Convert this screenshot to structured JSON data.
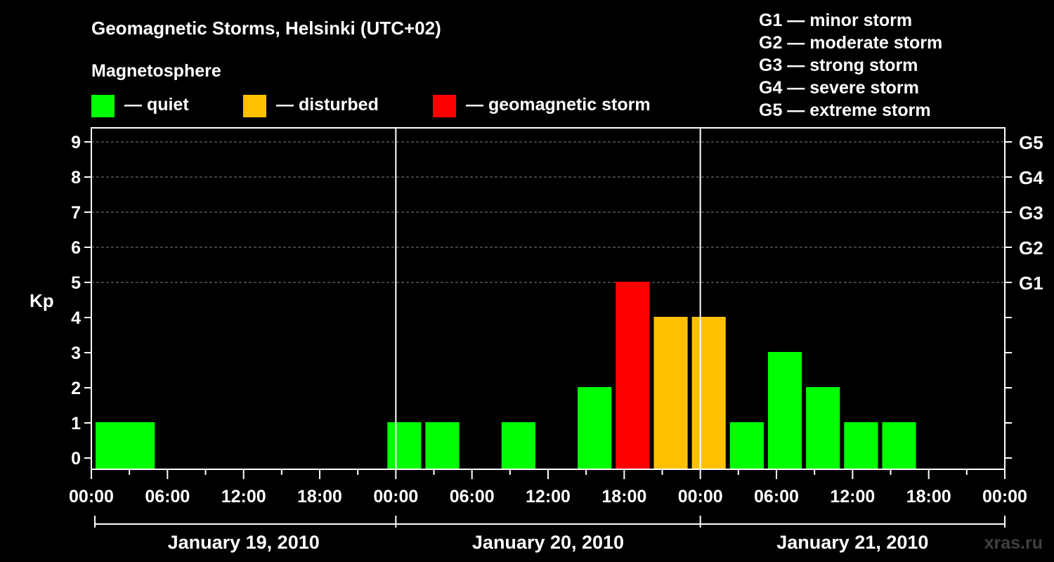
{
  "chart_data": {
    "type": "bar",
    "title": "Geomagnetic Storms, Helsinki (UTC+02)",
    "legend_title": "Magnetosphere",
    "legend": [
      {
        "key": "quiet",
        "label": "— quiet",
        "color": "#00ff00"
      },
      {
        "key": "disturbed",
        "label": "— disturbed",
        "color": "#ffc000"
      },
      {
        "key": "storm",
        "label": "— geomagnetic storm",
        "color": "#ff0000"
      }
    ],
    "storm_scale": [
      "G1 — minor storm",
      "G2 — moderate storm",
      "G3 — strong storm",
      "G4 — severe storm",
      "G5 — extreme storm"
    ],
    "ylabel": "Kp",
    "ylim": [
      0,
      9
    ],
    "yticks": [
      "0",
      "1",
      "2",
      "3",
      "4",
      "5",
      "6",
      "7",
      "8",
      "9"
    ],
    "g_levels": [
      {
        "kp": 5,
        "label": "G1"
      },
      {
        "kp": 6,
        "label": "G2"
      },
      {
        "kp": 7,
        "label": "G3"
      },
      {
        "kp": 8,
        "label": "G4"
      },
      {
        "kp": 9,
        "label": "G5"
      }
    ],
    "x_hours_range": [
      0,
      72
    ],
    "xticks": [
      "00:00",
      "06:00",
      "12:00",
      "18:00",
      "00:00",
      "06:00",
      "12:00",
      "18:00",
      "00:00",
      "06:00",
      "12:00",
      "18:00",
      "00:00"
    ],
    "days": [
      "January 19, 2010",
      "January 20, 2010",
      "January 21, 2010"
    ],
    "bars": [
      {
        "start_hour": 0,
        "kp": 1,
        "level": "quiet"
      },
      {
        "start_hour": 2,
        "kp": 1,
        "level": "quiet"
      },
      {
        "start_hour": 23,
        "kp": 1,
        "level": "quiet"
      },
      {
        "start_hour": 26,
        "kp": 1,
        "level": "quiet"
      },
      {
        "start_hour": 32,
        "kp": 1,
        "level": "quiet"
      },
      {
        "start_hour": 38,
        "kp": 2,
        "level": "quiet"
      },
      {
        "start_hour": 41,
        "kp": 5,
        "level": "storm"
      },
      {
        "start_hour": 44,
        "kp": 4,
        "level": "disturbed"
      },
      {
        "start_hour": 47,
        "kp": 4,
        "level": "disturbed"
      },
      {
        "start_hour": 50,
        "kp": 1,
        "level": "quiet"
      },
      {
        "start_hour": 53,
        "kp": 3,
        "level": "quiet"
      },
      {
        "start_hour": 56,
        "kp": 2,
        "level": "quiet"
      },
      {
        "start_hour": 59,
        "kp": 1,
        "level": "quiet"
      },
      {
        "start_hour": 62,
        "kp": 1,
        "level": "quiet"
      }
    ],
    "watermark": "xras.ru"
  }
}
